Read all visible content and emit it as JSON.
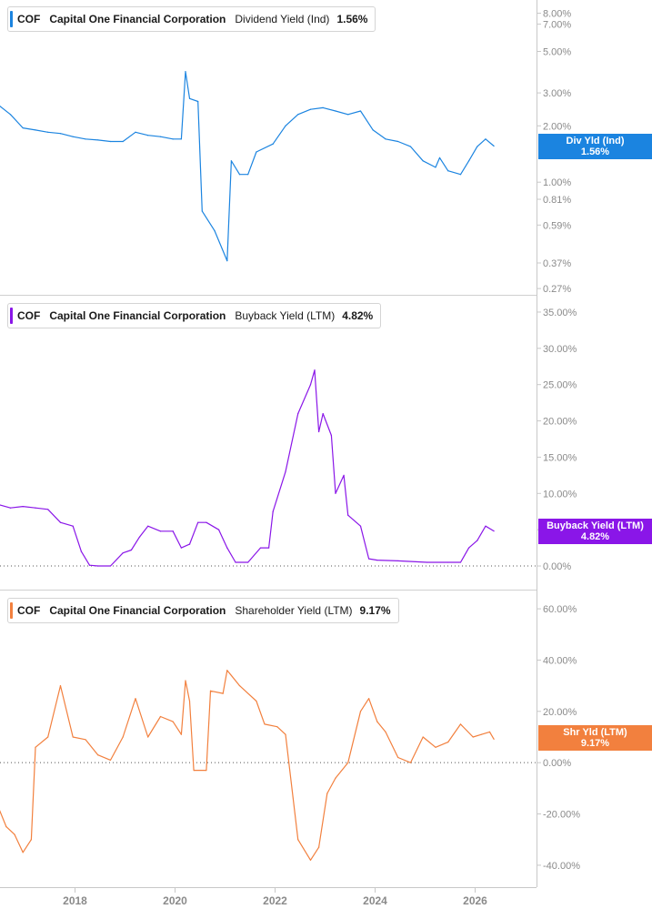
{
  "panels": [
    {
      "ticker": "COF",
      "company": "Capital One Financial Corporation",
      "metric": "Dividend Yield (Ind)",
      "current": "1.56%",
      "tag_label": "Div Yld (Ind)",
      "color": "#1b84e0"
    },
    {
      "ticker": "COF",
      "company": "Capital One Financial Corporation",
      "metric": "Buyback Yield (LTM)",
      "current": "4.82%",
      "tag_label": "Buyback Yield (LTM)",
      "color": "#8a16e8"
    },
    {
      "ticker": "COF",
      "company": "Capital One Financial Corporation",
      "metric": "Shareholder Yield (LTM)",
      "current": "9.17%",
      "tag_label": "Shr Yld (LTM)",
      "color": "#f2803e"
    }
  ],
  "x_ticks": [
    "2018",
    "2020",
    "2022",
    "2024",
    "2026"
  ],
  "chart_data": [
    {
      "type": "line",
      "title": "COF Capital One Financial Corporation Dividend Yield (Ind) 1.56%",
      "yscale": "log",
      "ylim": [
        0.25,
        9.0
      ],
      "y_ticks": [
        {
          "v": 8.0,
          "label": "8.00%"
        },
        {
          "v": 7.0,
          "label": "7.00%"
        },
        {
          "v": 5.0,
          "label": "5.00%"
        },
        {
          "v": 3.0,
          "label": "3.00%"
        },
        {
          "v": 2.0,
          "label": "2.00%"
        },
        {
          "v": 1.0,
          "label": "1.00%"
        },
        {
          "v": 0.81,
          "label": "0.81%"
        },
        {
          "v": 0.59,
          "label": "0.59%"
        },
        {
          "v": 0.37,
          "label": "0.37%"
        },
        {
          "v": 0.27,
          "label": "0.27%"
        }
      ],
      "series": [
        {
          "values": [
            [
              "2016-06",
              2.6
            ],
            [
              "2016-09",
              2.3
            ],
            [
              "2016-12",
              1.95
            ],
            [
              "2017-03",
              1.9
            ],
            [
              "2017-06",
              1.85
            ],
            [
              "2017-09",
              1.82
            ],
            [
              "2017-12",
              1.75
            ],
            [
              "2018-03",
              1.7
            ],
            [
              "2018-06",
              1.68
            ],
            [
              "2018-09",
              1.65
            ],
            [
              "2018-12",
              1.65
            ],
            [
              "2019-03",
              1.85
            ],
            [
              "2019-06",
              1.78
            ],
            [
              "2019-09",
              1.75
            ],
            [
              "2019-12",
              1.7
            ],
            [
              "2020-02",
              1.7
            ],
            [
              "2020-03",
              3.9
            ],
            [
              "2020-04",
              2.8
            ],
            [
              "2020-06",
              2.7
            ],
            [
              "2020-07",
              0.7
            ],
            [
              "2020-10",
              0.55
            ],
            [
              "2021-01",
              0.38
            ],
            [
              "2021-02",
              1.3
            ],
            [
              "2021-04",
              1.1
            ],
            [
              "2021-06",
              1.1
            ],
            [
              "2021-08",
              1.45
            ],
            [
              "2021-12",
              1.6
            ],
            [
              "2022-03",
              2.0
            ],
            [
              "2022-06",
              2.3
            ],
            [
              "2022-09",
              2.45
            ],
            [
              "2022-12",
              2.5
            ],
            [
              "2023-03",
              2.4
            ],
            [
              "2023-06",
              2.3
            ],
            [
              "2023-09",
              2.4
            ],
            [
              "2023-12",
              1.9
            ],
            [
              "2024-03",
              1.7
            ],
            [
              "2024-06",
              1.65
            ],
            [
              "2024-09",
              1.55
            ],
            [
              "2024-12",
              1.3
            ],
            [
              "2025-03",
              1.2
            ],
            [
              "2025-04",
              1.35
            ],
            [
              "2025-06",
              1.15
            ],
            [
              "2025-09",
              1.1
            ],
            [
              "2025-11",
              1.3
            ],
            [
              "2026-01",
              1.55
            ],
            [
              "2026-03",
              1.7
            ],
            [
              "2026-05",
              1.56
            ]
          ]
        }
      ]
    },
    {
      "type": "line",
      "title": "COF Capital One Financial Corporation Buyback Yield (LTM) 4.82%",
      "ylim": [
        -1,
        36
      ],
      "y_ticks": [
        {
          "v": 35,
          "label": "35.00%"
        },
        {
          "v": 30,
          "label": "30.00%"
        },
        {
          "v": 25,
          "label": "25.00%"
        },
        {
          "v": 20,
          "label": "20.00%"
        },
        {
          "v": 15,
          "label": "15.00%"
        },
        {
          "v": 10,
          "label": "10.00%"
        },
        {
          "v": 5,
          "label": "5.00%"
        },
        {
          "v": 0,
          "label": "0.00%"
        }
      ],
      "zero_line": true,
      "series": [
        {
          "values": [
            [
              "2016-06",
              8.5
            ],
            [
              "2016-09",
              8.0
            ],
            [
              "2016-12",
              8.2
            ],
            [
              "2017-03",
              8.0
            ],
            [
              "2017-06",
              7.8
            ],
            [
              "2017-09",
              6.0
            ],
            [
              "2017-12",
              5.5
            ],
            [
              "2018-02",
              2.0
            ],
            [
              "2018-04",
              0.1
            ],
            [
              "2018-06",
              0.0
            ],
            [
              "2018-09",
              0.0
            ],
            [
              "2018-12",
              1.8
            ],
            [
              "2019-02",
              2.2
            ],
            [
              "2019-04",
              4.0
            ],
            [
              "2019-06",
              5.5
            ],
            [
              "2019-09",
              4.8
            ],
            [
              "2019-12",
              4.8
            ],
            [
              "2020-02",
              2.5
            ],
            [
              "2020-04",
              3.0
            ],
            [
              "2020-06",
              6.0
            ],
            [
              "2020-08",
              6.0
            ],
            [
              "2020-11",
              5.0
            ],
            [
              "2021-01",
              2.5
            ],
            [
              "2021-03",
              0.5
            ],
            [
              "2021-06",
              0.5
            ],
            [
              "2021-09",
              2.5
            ],
            [
              "2021-11",
              2.5
            ],
            [
              "2021-12",
              7.5
            ],
            [
              "2022-03",
              13.0
            ],
            [
              "2022-06",
              21.0
            ],
            [
              "2022-09",
              25.0
            ],
            [
              "2022-10",
              27.0
            ],
            [
              "2022-11",
              18.5
            ],
            [
              "2022-12",
              21.0
            ],
            [
              "2023-02",
              18.0
            ],
            [
              "2023-03",
              10.0
            ],
            [
              "2023-05",
              12.5
            ],
            [
              "2023-06",
              7.0
            ],
            [
              "2023-09",
              5.5
            ],
            [
              "2023-11",
              1.0
            ],
            [
              "2024-01",
              0.8
            ],
            [
              "2024-06",
              0.7
            ],
            [
              "2025-01",
              0.5
            ],
            [
              "2025-06",
              0.5
            ],
            [
              "2025-09",
              0.5
            ],
            [
              "2025-11",
              2.5
            ],
            [
              "2026-01",
              3.5
            ],
            [
              "2026-03",
              5.5
            ],
            [
              "2026-05",
              4.82
            ]
          ]
        }
      ]
    },
    {
      "type": "line",
      "title": "COF Capital One Financial Corporation Shareholder Yield (LTM) 9.17%",
      "ylim": [
        -45,
        65
      ],
      "y_ticks": [
        {
          "v": 60,
          "label": "60.00%"
        },
        {
          "v": 40,
          "label": "40.00%"
        },
        {
          "v": 20,
          "label": "20.00%"
        },
        {
          "v": 0,
          "label": "0.00%"
        },
        {
          "v": -20,
          "label": "-20.00%"
        },
        {
          "v": -40,
          "label": "-40.00%"
        }
      ],
      "zero_line": true,
      "series": [
        {
          "values": [
            [
              "2016-06",
              -17.0
            ],
            [
              "2016-08",
              -25.0
            ],
            [
              "2016-10",
              -28.0
            ],
            [
              "2016-12",
              -35.0
            ],
            [
              "2017-02",
              -30.0
            ],
            [
              "2017-03",
              6.0
            ],
            [
              "2017-06",
              10.0
            ],
            [
              "2017-09",
              30.0
            ],
            [
              "2017-12",
              10.0
            ],
            [
              "2018-03",
              9.0
            ],
            [
              "2018-06",
              3.0
            ],
            [
              "2018-09",
              1.0
            ],
            [
              "2018-12",
              10.0
            ],
            [
              "2019-03",
              25.0
            ],
            [
              "2019-06",
              10.0
            ],
            [
              "2019-09",
              18.0
            ],
            [
              "2019-12",
              16.0
            ],
            [
              "2020-02",
              11.0
            ],
            [
              "2020-03",
              32.0
            ],
            [
              "2020-04",
              24.0
            ],
            [
              "2020-05",
              -3.0
            ],
            [
              "2020-08",
              -3.0
            ],
            [
              "2020-09",
              28.0
            ],
            [
              "2020-12",
              27.0
            ],
            [
              "2021-01",
              36.0
            ],
            [
              "2021-04",
              30.0
            ],
            [
              "2021-08",
              24.0
            ],
            [
              "2021-10",
              15.0
            ],
            [
              "2022-01",
              14.0
            ],
            [
              "2022-03",
              11.0
            ],
            [
              "2022-06",
              -30.0
            ],
            [
              "2022-09",
              -38.0
            ],
            [
              "2022-11",
              -33.0
            ],
            [
              "2023-01",
              -12.0
            ],
            [
              "2023-03",
              -6.0
            ],
            [
              "2023-06",
              0.0
            ],
            [
              "2023-09",
              20.0
            ],
            [
              "2023-11",
              25.0
            ],
            [
              "2024-01",
              16.0
            ],
            [
              "2024-03",
              12.0
            ],
            [
              "2024-06",
              2.0
            ],
            [
              "2024-09",
              0.0
            ],
            [
              "2024-12",
              10.0
            ],
            [
              "2025-03",
              6.0
            ],
            [
              "2025-06",
              8.0
            ],
            [
              "2025-09",
              15.0
            ],
            [
              "2025-12",
              10.0
            ],
            [
              "2026-02",
              11.0
            ],
            [
              "2026-04",
              12.0
            ],
            [
              "2026-05",
              9.17
            ]
          ]
        }
      ]
    }
  ]
}
